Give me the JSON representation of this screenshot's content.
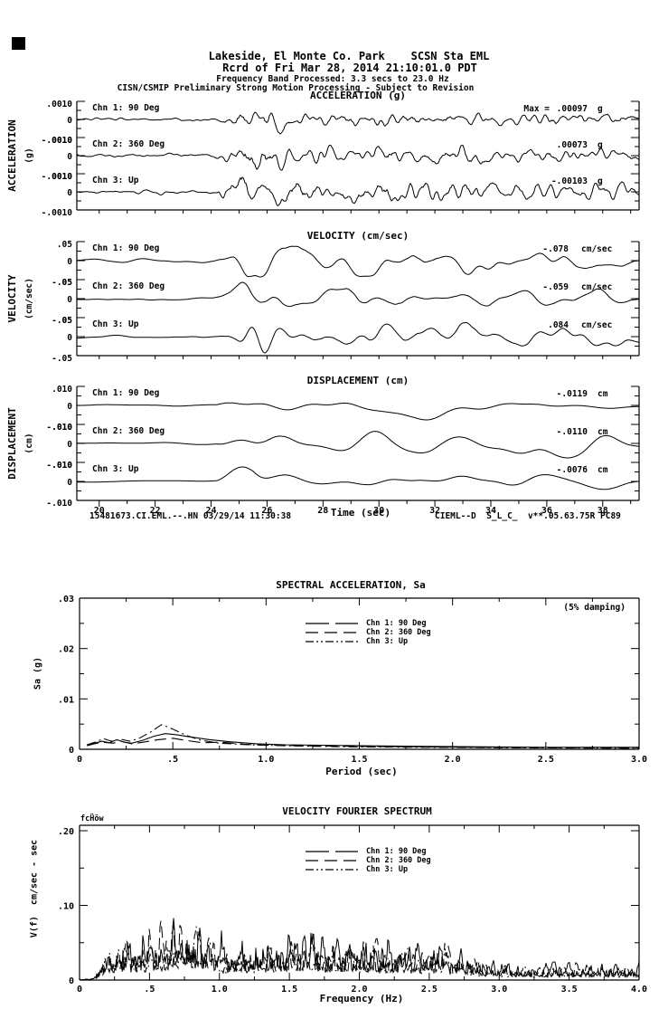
{
  "header": {
    "line1": "Lakeside, El Monte Co. Park    SCSN Sta EML",
    "line2": "Rcrd of Fri Mar 28, 2014 21:10:01.0 PDT",
    "line3": "Frequency Band Processed: 3.3 secs to 23.0 Hz",
    "line4": "CISN/CSMIP Preliminary Strong Motion Processing - Subject to Revision"
  },
  "footer": {
    "left": "15481673.CI.EML.--.HN 03/29/14 11:30:38",
    "right": "CIEML--D  S_L_C_  v**.05.63.75R PC89"
  },
  "chart_data": [
    {
      "id": "acceleration",
      "type": "line",
      "title": "ACCELERATION (g)",
      "side_label": "ACCELERATION",
      "side_units": "(g)",
      "x": {
        "start": 19.2,
        "end": 39.3
      },
      "ytick_labels": [
        ".0010",
        "0",
        "-.0010"
      ],
      "channels": [
        {
          "label": "Chn 1: 90 Deg",
          "max_prefix": "Max =",
          "max_value": ".00097",
          "units": "g"
        },
        {
          "label": "Chn 2: 360 Deg",
          "max_value": ".00073",
          "units": "g"
        },
        {
          "label": "Chn 3: Up",
          "max_value": "-.00103",
          "units": "g"
        }
      ],
      "synth": {
        "seed": 41,
        "smooth_window": 2,
        "smooth_passes": 2,
        "envelope": [
          [
            19.2,
            0.1
          ],
          [
            24.1,
            0.11
          ],
          [
            24.5,
            0.45
          ],
          [
            25.3,
            1.0
          ],
          [
            26.2,
            0.85
          ],
          [
            27.2,
            0.6
          ],
          [
            28.5,
            0.5
          ],
          [
            30.0,
            0.62
          ],
          [
            31.5,
            0.48
          ],
          [
            33.0,
            0.55
          ],
          [
            34.5,
            0.42
          ],
          [
            36.0,
            0.5
          ],
          [
            37.5,
            0.4
          ],
          [
            39.3,
            0.42
          ]
        ]
      }
    },
    {
      "id": "velocity",
      "type": "line",
      "title": "VELOCITY (cm/sec)",
      "side_label": "VELOCITY",
      "side_units": "(cm/sec)",
      "x": {
        "start": 19.2,
        "end": 39.3
      },
      "ytick_labels": [
        ".05",
        "0",
        "-.05"
      ],
      "channels": [
        {
          "label": "Chn 1: 90 Deg",
          "max_value": "-.078",
          "units": "cm/sec"
        },
        {
          "label": "Chn 2: 360 Deg",
          "max_value": "-.059",
          "units": "cm/sec"
        },
        {
          "label": "Chn 3: Up",
          "max_value": ".084",
          "units": "cm/sec"
        }
      ],
      "synth": {
        "seed": 97,
        "smooth_window": 6,
        "smooth_passes": 3,
        "envelope": [
          [
            19.2,
            0.08
          ],
          [
            24.0,
            0.09
          ],
          [
            24.5,
            0.4
          ],
          [
            25.3,
            1.0
          ],
          [
            26.5,
            0.9
          ],
          [
            27.5,
            0.65
          ],
          [
            29.0,
            0.6
          ],
          [
            30.5,
            0.75
          ],
          [
            32.0,
            0.6
          ],
          [
            33.5,
            0.7
          ],
          [
            35.0,
            0.55
          ],
          [
            37.0,
            0.55
          ],
          [
            39.3,
            0.5
          ]
        ]
      }
    },
    {
      "id": "displacement",
      "type": "line",
      "title": "DISPLACEMENT (cm)",
      "side_label": "DISPLACEMENT",
      "side_units": "(cm)",
      "xlabel": "Time (sec)",
      "x": {
        "start": 19.2,
        "end": 39.3,
        "tick_labels": [
          "20",
          "22",
          "24",
          "26",
          "28",
          "30",
          "32",
          "34",
          "36",
          "38"
        ],
        "tick_values": [
          20,
          22,
          24,
          26,
          28,
          30,
          32,
          34,
          36,
          38
        ]
      },
      "ytick_labels": [
        ".010",
        "0",
        "-.010"
      ],
      "channels": [
        {
          "label": "Chn 1: 90 Deg",
          "max_value": "-.0119",
          "units": "cm"
        },
        {
          "label": "Chn 2: 360 Deg",
          "max_value": "-.0110",
          "units": "cm"
        },
        {
          "label": "Chn 3: Up",
          "max_value": "-.0076",
          "units": "cm"
        }
      ],
      "synth": {
        "seed": 173,
        "smooth_window": 11,
        "smooth_passes": 4,
        "envelope": [
          [
            19.2,
            0.05
          ],
          [
            24.2,
            0.07
          ],
          [
            24.8,
            0.55
          ],
          [
            25.5,
            1.0
          ],
          [
            26.5,
            0.7
          ],
          [
            27.5,
            0.55
          ],
          [
            29.5,
            0.6
          ],
          [
            31.0,
            0.85
          ],
          [
            32.5,
            0.6
          ],
          [
            34.0,
            0.5
          ],
          [
            35.5,
            0.55
          ],
          [
            37.0,
            0.45
          ],
          [
            39.3,
            0.5
          ]
        ]
      }
    },
    {
      "id": "spectral_acceleration",
      "type": "line",
      "title": "SPECTRAL ACCELERATION, Sa",
      "damping": "(5% damping)",
      "ylabel": "Sa (g)",
      "xlabel": "Period (sec)",
      "xlim": [
        0,
        3.0
      ],
      "ylim": [
        0,
        0.03
      ],
      "xtick_labels": [
        "0",
        ".5",
        "1.0",
        "1.5",
        "2.0",
        "2.5",
        "3.0"
      ],
      "ytick_labels": [
        ".03",
        ".02",
        ".01",
        "0"
      ],
      "series": [
        {
          "name": "Chn 1: 90 Deg",
          "style": "solid",
          "points": [
            [
              0.04,
              0.0008
            ],
            [
              0.08,
              0.0012
            ],
            [
              0.12,
              0.0016
            ],
            [
              0.16,
              0.0013
            ],
            [
              0.2,
              0.0019
            ],
            [
              0.24,
              0.0014
            ],
            [
              0.28,
              0.0012
            ],
            [
              0.34,
              0.0018
            ],
            [
              0.4,
              0.0026
            ],
            [
              0.46,
              0.0031
            ],
            [
              0.52,
              0.0029
            ],
            [
              0.6,
              0.0024
            ],
            [
              0.7,
              0.0019
            ],
            [
              0.8,
              0.0015
            ],
            [
              0.95,
              0.0011
            ],
            [
              1.1,
              0.0009
            ],
            [
              1.3,
              0.0008
            ],
            [
              1.5,
              0.0007
            ],
            [
              1.8,
              0.0006
            ],
            [
              2.1,
              0.0005
            ],
            [
              2.5,
              0.0004
            ],
            [
              3.0,
              0.0004
            ]
          ]
        },
        {
          "name": "Chn 2: 360 Deg",
          "style": "long-dash",
          "points": [
            [
              0.04,
              0.0007
            ],
            [
              0.08,
              0.0011
            ],
            [
              0.12,
              0.0014
            ],
            [
              0.18,
              0.0012
            ],
            [
              0.22,
              0.0016
            ],
            [
              0.28,
              0.0011
            ],
            [
              0.34,
              0.0014
            ],
            [
              0.42,
              0.0019
            ],
            [
              0.5,
              0.0022
            ],
            [
              0.58,
              0.0017
            ],
            [
              0.66,
              0.0013
            ],
            [
              0.76,
              0.0014
            ],
            [
              0.88,
              0.001
            ],
            [
              1.0,
              0.0008
            ],
            [
              1.2,
              0.0007
            ],
            [
              1.45,
              0.0006
            ],
            [
              1.75,
              0.0005
            ],
            [
              2.1,
              0.0004
            ],
            [
              2.6,
              0.0003
            ],
            [
              3.0,
              0.0003
            ]
          ]
        },
        {
          "name": "Chn 3: Up",
          "style": "dash-dot",
          "points": [
            [
              0.04,
              0.0009
            ],
            [
              0.09,
              0.0015
            ],
            [
              0.13,
              0.0021
            ],
            [
              0.17,
              0.0016
            ],
            [
              0.22,
              0.002
            ],
            [
              0.27,
              0.0016
            ],
            [
              0.32,
              0.0022
            ],
            [
              0.38,
              0.0034
            ],
            [
              0.44,
              0.0049
            ],
            [
              0.5,
              0.004
            ],
            [
              0.57,
              0.0028
            ],
            [
              0.65,
              0.0018
            ],
            [
              0.75,
              0.0012
            ],
            [
              0.9,
              0.0009
            ],
            [
              1.1,
              0.0007
            ],
            [
              1.4,
              0.0005
            ],
            [
              1.8,
              0.0004
            ],
            [
              2.3,
              0.0003
            ],
            [
              3.0,
              0.0002
            ]
          ]
        }
      ]
    },
    {
      "id": "velocity_fourier_spectrum",
      "type": "line",
      "title": "VELOCITY FOURIER SPECTRUM",
      "corner_note": "fcḦöw",
      "ylabel": "V(f)  cm/sec - sec",
      "xlabel": "Frequency (Hz)",
      "xlim": [
        0,
        4.0
      ],
      "ylim": [
        0,
        0.207
      ],
      "xtick_labels": [
        "0",
        ".5",
        "1.0",
        "1.5",
        "2.0",
        "2.5",
        "3.0",
        "3.5",
        "4.0"
      ],
      "ytick_labels": [
        ".20",
        ".10",
        "0"
      ],
      "peak_value": 0.11,
      "peak_freq": 0.75,
      "series": [
        {
          "name": "Chn 1: 90 Deg",
          "style": "solid",
          "seed": 7,
          "scale": 1.0
        },
        {
          "name": "Chn 2: 360 Deg",
          "style": "long-dash",
          "seed": 23,
          "scale": 0.88
        },
        {
          "name": "Chn 3: Up",
          "style": "dash-dot",
          "seed": 55,
          "scale": 0.8
        }
      ],
      "synth": {
        "smooth_window": 2,
        "smooth_passes": 1,
        "envelope": [
          [
            0.0,
            0.0
          ],
          [
            0.08,
            0.002
          ],
          [
            0.12,
            0.012
          ],
          [
            0.18,
            0.045
          ],
          [
            0.25,
            0.055
          ],
          [
            0.33,
            0.05
          ],
          [
            0.42,
            0.055
          ],
          [
            0.52,
            0.06
          ],
          [
            0.62,
            0.07
          ],
          [
            0.72,
            0.092
          ],
          [
            0.8,
            0.085
          ],
          [
            0.9,
            0.06
          ],
          [
            1.05,
            0.05
          ],
          [
            1.2,
            0.055
          ],
          [
            1.35,
            0.05
          ],
          [
            1.5,
            0.062
          ],
          [
            1.65,
            0.055
          ],
          [
            1.8,
            0.05
          ],
          [
            2.0,
            0.052
          ],
          [
            2.2,
            0.045
          ],
          [
            2.4,
            0.042
          ],
          [
            2.6,
            0.05
          ],
          [
            2.75,
            0.035
          ],
          [
            2.9,
            0.025
          ],
          [
            3.1,
            0.022
          ],
          [
            3.3,
            0.02
          ],
          [
            3.6,
            0.022
          ],
          [
            3.8,
            0.02
          ],
          [
            4.0,
            0.018
          ]
        ]
      }
    }
  ]
}
